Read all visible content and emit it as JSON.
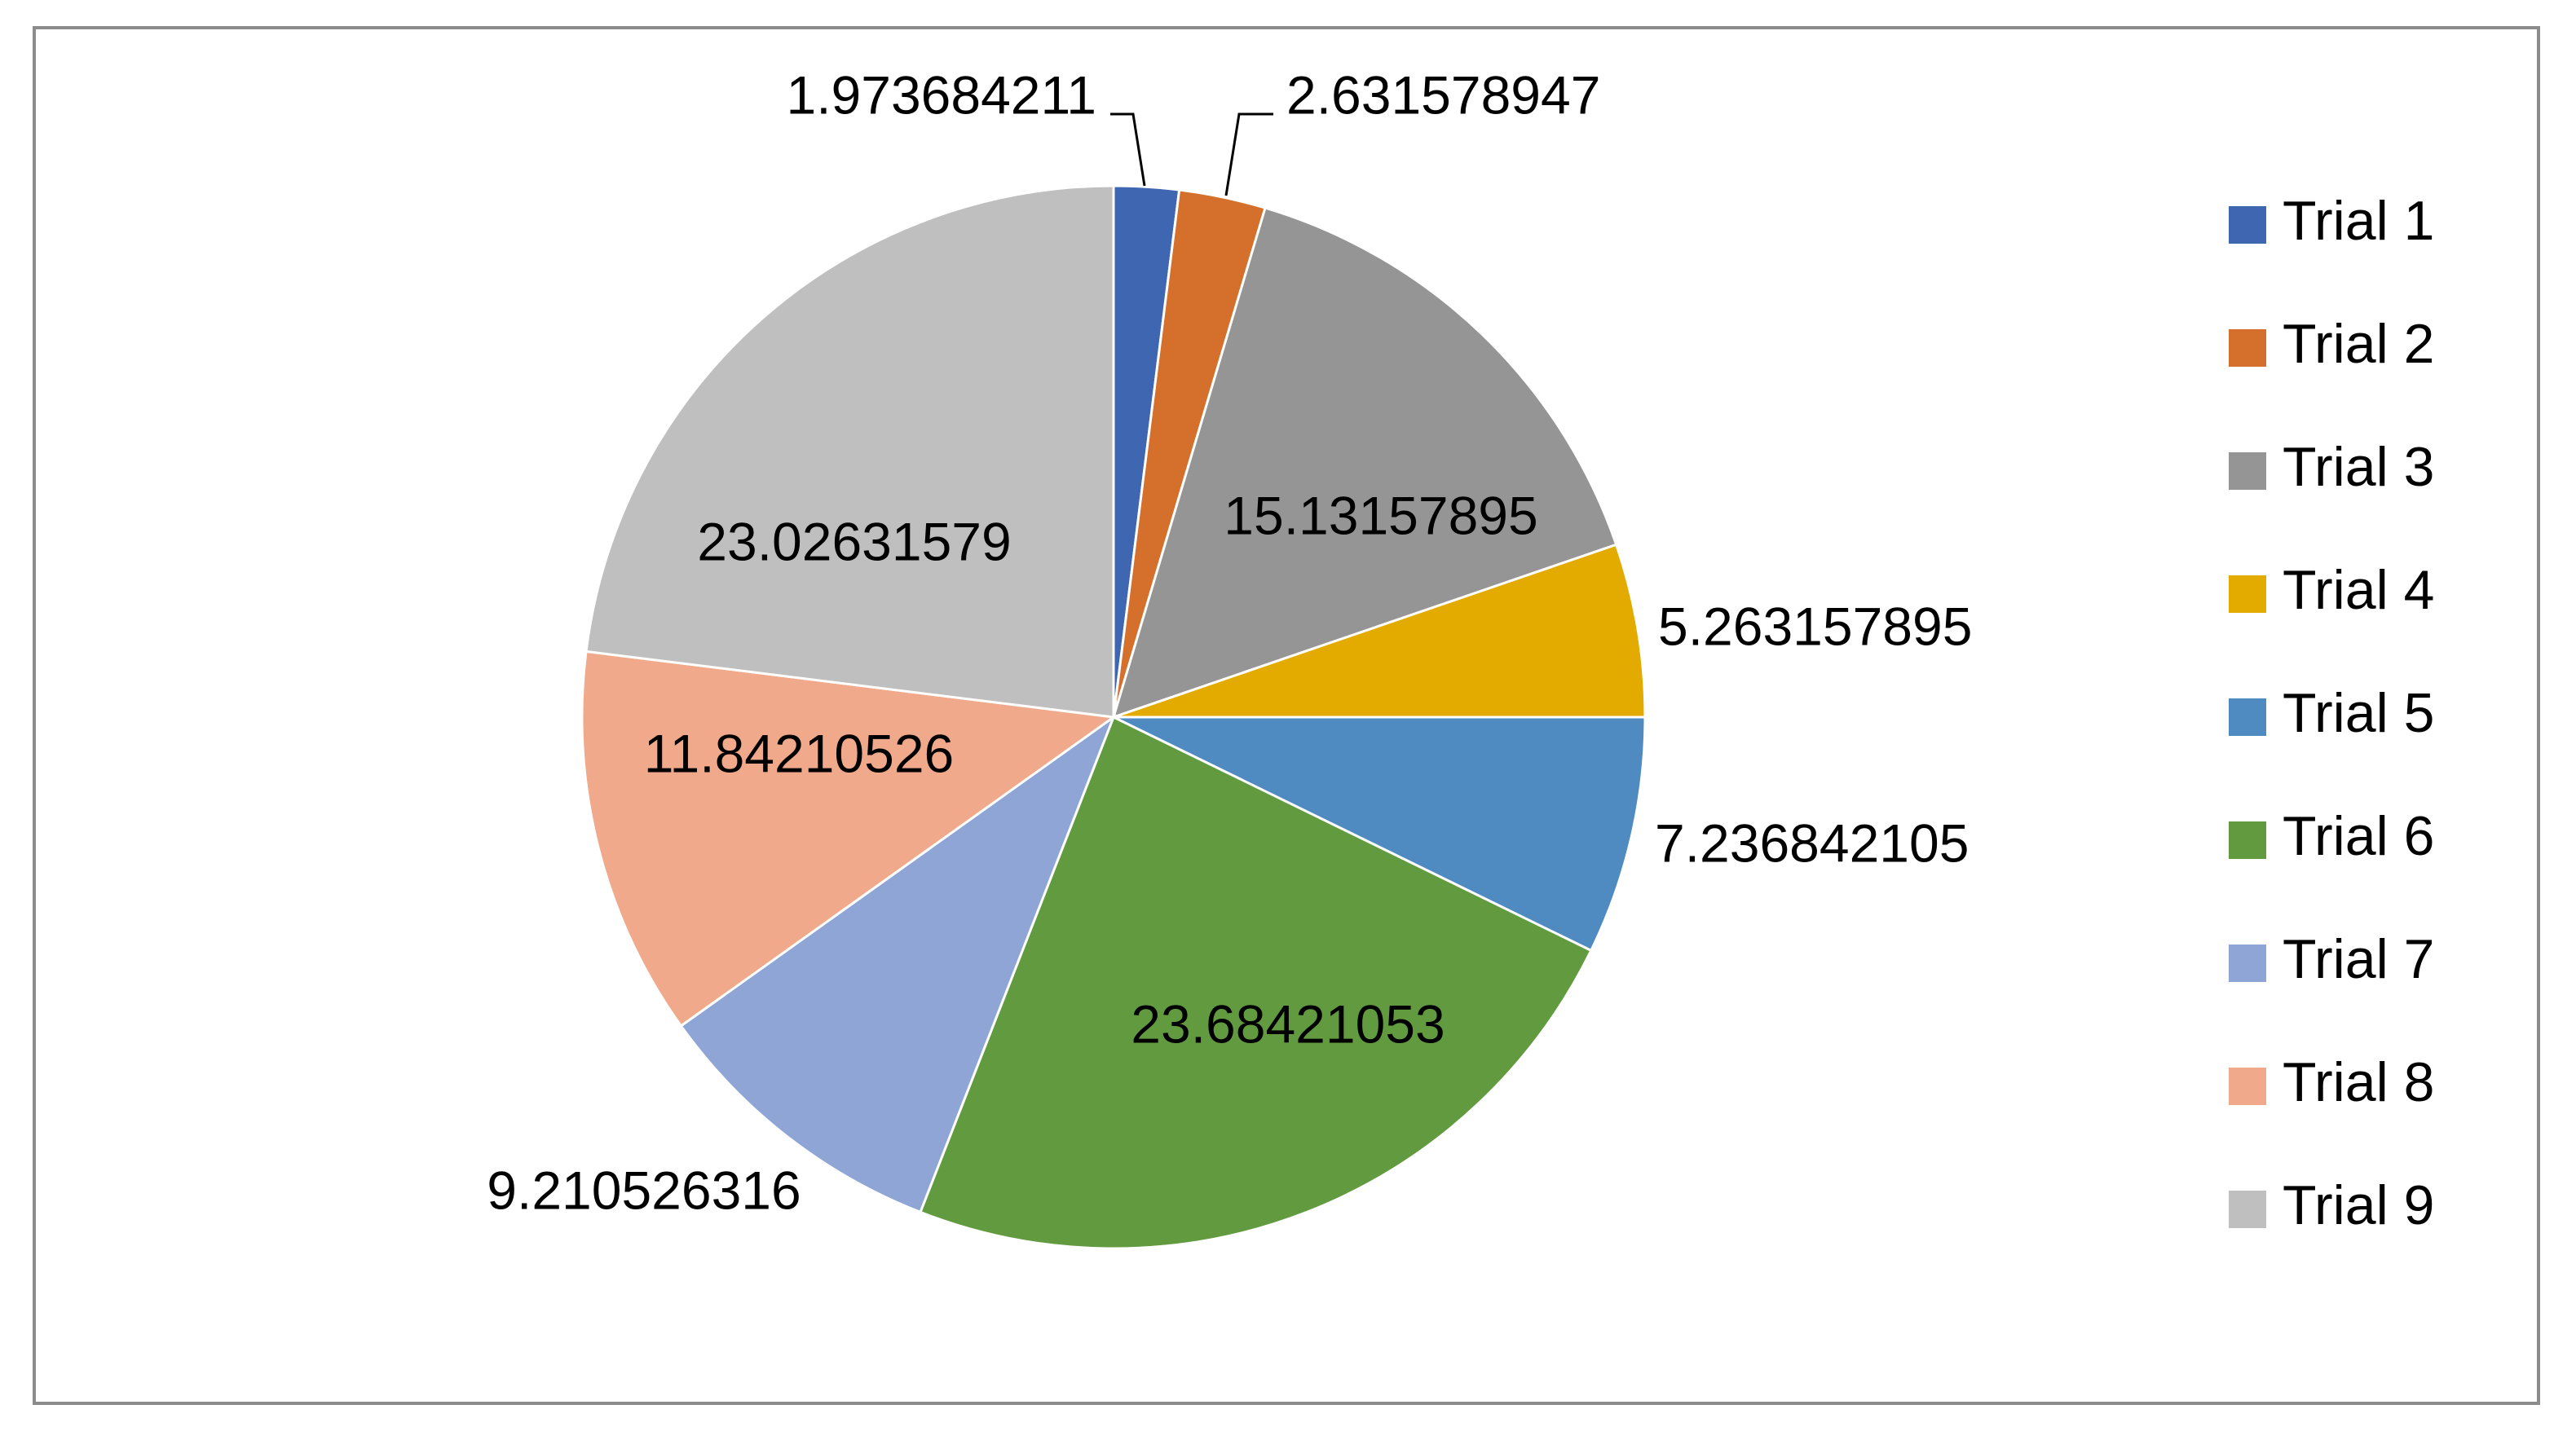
{
  "chart_data": {
    "type": "pie",
    "title": "",
    "categories": [
      "Trial 1",
      "Trial 2",
      "Trial 3",
      "Trial 4",
      "Trial 5",
      "Trial 6",
      "Trial 7",
      "Trial 8",
      "Trial 9"
    ],
    "values": [
      1.973684211,
      2.631578947,
      15.13157895,
      5.263157895,
      7.236842105,
      23.68421053,
      9.210526316,
      11.84210526,
      23.02631579
    ],
    "labels": [
      "1.973684211",
      "2.631578947",
      "15.13157895",
      "5.263157895",
      "7.236842105",
      "23.68421053",
      "9.210526316",
      "11.84210526",
      "23.02631579"
    ],
    "colors": [
      "#3f67b1",
      "#d46f2c",
      "#959595",
      "#e3ab00",
      "#4f8bc0",
      "#629a40",
      "#8fa5d6",
      "#f0a98b",
      "#bfbfbf"
    ],
    "legend_position": "right",
    "start_angle": "top",
    "direction": "clockwise"
  }
}
